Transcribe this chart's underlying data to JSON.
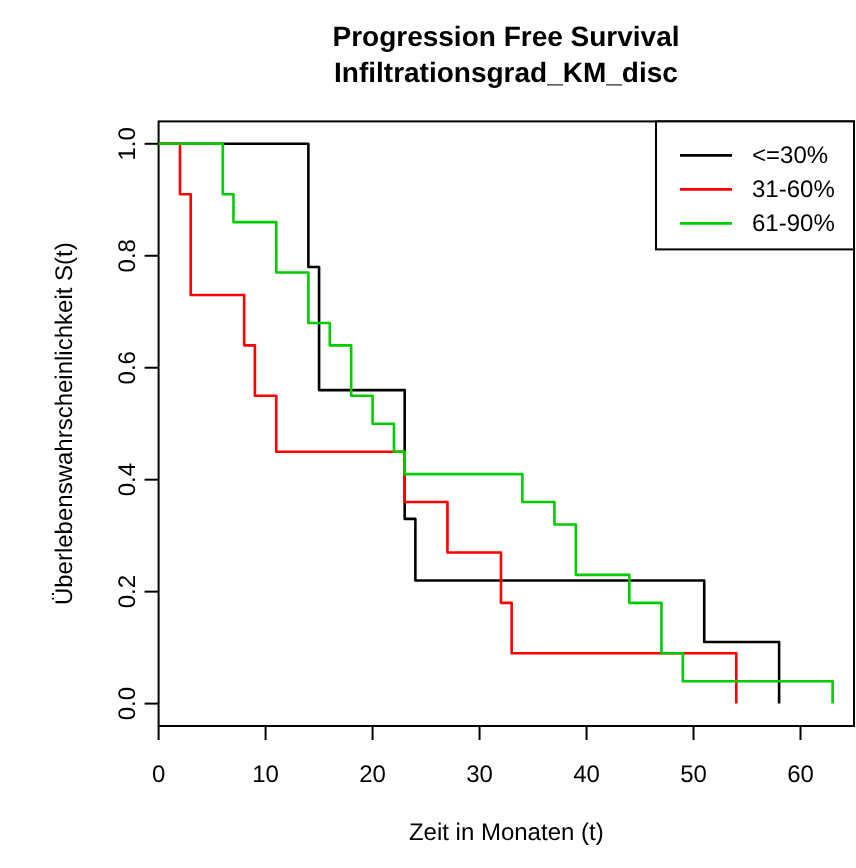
{
  "chart_data": {
    "type": "step",
    "title": "Progression Free Survival",
    "subtitle": "Infiltrationsgrad_KM_disc",
    "xlabel": "Zeit in Monaten (t)",
    "ylabel": "Überlebenswahrscheinlichkeit S(t)",
    "xlim": [
      0,
      65
    ],
    "xticks": [
      0,
      10,
      20,
      30,
      40,
      50,
      60
    ],
    "ylim": [
      -0.04,
      1.04
    ],
    "yticks": [
      {
        "value": 0,
        "label": "0.0"
      },
      {
        "value": 0.2,
        "label": "0.2"
      },
      {
        "value": 0.4,
        "label": "0.4"
      },
      {
        "value": 0.6,
        "label": "0.6"
      },
      {
        "value": 0.8,
        "label": "0.8"
      },
      {
        "value": 1,
        "label": "1.0"
      }
    ],
    "legend": "top right",
    "grid": false,
    "series": [
      {
        "name": "<=30%",
        "color": "#000000",
        "x": [
          0,
          14,
          15,
          23,
          24,
          51,
          58
        ],
        "values": [
          1,
          0.78,
          0.56,
          0.33,
          0.22,
          0.11,
          0
        ]
      },
      {
        "name": "31-60%",
        "color": "#ff0000",
        "x": [
          0,
          2,
          3,
          8,
          9,
          11,
          23,
          27,
          32,
          33,
          54
        ],
        "values": [
          1,
          0.91,
          0.73,
          0.64,
          0.55,
          0.45,
          0.36,
          0.27,
          0.18,
          0.09,
          0
        ]
      },
      {
        "name": "61-90%",
        "color": "#00cd00",
        "x": [
          0,
          6,
          7,
          11,
          14,
          16,
          18,
          20,
          22,
          23,
          34,
          37,
          39,
          44,
          47,
          49,
          63
        ],
        "values": [
          1,
          0.91,
          0.86,
          0.77,
          0.68,
          0.64,
          0.55,
          0.5,
          0.45,
          0.41,
          0.36,
          0.32,
          0.23,
          0.18,
          0.09,
          0.04,
          0
        ]
      }
    ]
  }
}
